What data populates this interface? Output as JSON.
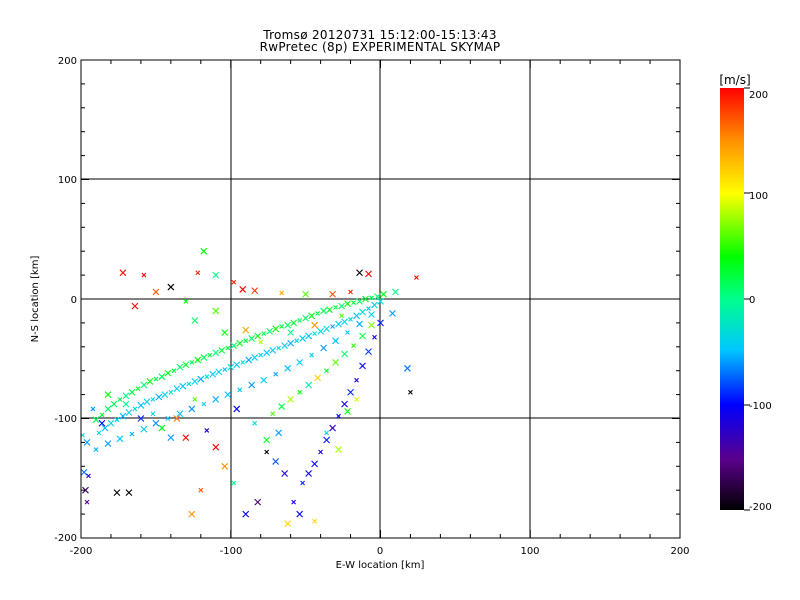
{
  "chart_data": {
    "type": "scatter",
    "title": "Tromsø 20120731 15:12:00-15:13:43",
    "subtitle": "RwPretec (8p) EXPERIMENTAL SKYMAP",
    "xlabel": "E-W location [km]",
    "ylabel": "N-S location [km]",
    "xlim": [
      -200,
      200
    ],
    "ylim": [
      -200,
      200
    ],
    "xticks": [
      "-200",
      "-100",
      "0",
      "100",
      "200"
    ],
    "yticks": [
      "200",
      "100",
      "0",
      "-100",
      "-200"
    ],
    "grid": true,
    "colorbar": {
      "label": "[m/s]",
      "ticks": [
        "200",
        "100",
        "0",
        "-100",
        "-200"
      ],
      "range": [
        -200,
        200
      ],
      "colors": [
        "#000000",
        "#5a008c",
        "#0000ff",
        "#00c8ff",
        "#00ff8c",
        "#00ff00",
        "#ffff00",
        "#ff8c00",
        "#ff0000"
      ]
    },
    "points": [
      {
        "x": -199,
        "y": -114,
        "v": -30
      },
      {
        "x": -196,
        "y": -120,
        "v": -60
      },
      {
        "x": -198,
        "y": -145,
        "v": -70
      },
      {
        "x": -195,
        "y": -148,
        "v": -120
      },
      {
        "x": -197,
        "y": -160,
        "v": -170
      },
      {
        "x": -190,
        "y": -101,
        "v": 20
      },
      {
        "x": -186,
        "y": -97,
        "v": 30
      },
      {
        "x": -182,
        "y": -92,
        "v": 10
      },
      {
        "x": -178,
        "y": -88,
        "v": 15
      },
      {
        "x": -174,
        "y": -84,
        "v": 25
      },
      {
        "x": -170,
        "y": -81,
        "v": 5
      },
      {
        "x": -166,
        "y": -78,
        "v": 20
      },
      {
        "x": -162,
        "y": -75,
        "v": 30
      },
      {
        "x": -158,
        "y": -72,
        "v": 10
      },
      {
        "x": -154,
        "y": -69,
        "v": 40
      },
      {
        "x": -150,
        "y": -67,
        "v": 20
      },
      {
        "x": -146,
        "y": -65,
        "v": 15
      },
      {
        "x": -142,
        "y": -62,
        "v": 35
      },
      {
        "x": -138,
        "y": -60,
        "v": 25
      },
      {
        "x": -134,
        "y": -57,
        "v": 10
      },
      {
        "x": -130,
        "y": -55,
        "v": 30
      },
      {
        "x": -126,
        "y": -53,
        "v": 20
      },
      {
        "x": -122,
        "y": -51,
        "v": 40
      },
      {
        "x": -118,
        "y": -49,
        "v": 15
      },
      {
        "x": -114,
        "y": -47,
        "v": 25
      },
      {
        "x": -110,
        "y": -45,
        "v": 5
      },
      {
        "x": -106,
        "y": -43,
        "v": 30
      },
      {
        "x": -102,
        "y": -41,
        "v": 20
      },
      {
        "x": -98,
        "y": -39,
        "v": 10
      },
      {
        "x": -94,
        "y": -37,
        "v": 35
      },
      {
        "x": -90,
        "y": -35,
        "v": 25
      },
      {
        "x": -86,
        "y": -33,
        "v": 15
      },
      {
        "x": -82,
        "y": -31,
        "v": 30
      },
      {
        "x": -78,
        "y": -29,
        "v": 20
      },
      {
        "x": -74,
        "y": -27,
        "v": 10
      },
      {
        "x": -70,
        "y": -25,
        "v": 40
      },
      {
        "x": -66,
        "y": -23,
        "v": 25
      },
      {
        "x": -62,
        "y": -22,
        "v": 15
      },
      {
        "x": -58,
        "y": -20,
        "v": 30
      },
      {
        "x": -54,
        "y": -18,
        "v": 20
      },
      {
        "x": -50,
        "y": -16,
        "v": 10
      },
      {
        "x": -46,
        "y": -14,
        "v": 35
      },
      {
        "x": -42,
        "y": -12,
        "v": 25
      },
      {
        "x": -38,
        "y": -10,
        "v": 15
      },
      {
        "x": -34,
        "y": -9,
        "v": 30
      },
      {
        "x": -30,
        "y": -7,
        "v": 20
      },
      {
        "x": -26,
        "y": -6,
        "v": 10
      },
      {
        "x": -22,
        "y": -4,
        "v": 40
      },
      {
        "x": -18,
        "y": -3,
        "v": 25
      },
      {
        "x": -14,
        "y": -2,
        "v": 15
      },
      {
        "x": -10,
        "y": 0,
        "v": 30
      },
      {
        "x": -6,
        "y": 1,
        "v": 20
      },
      {
        "x": -2,
        "y": 2,
        "v": 10
      },
      {
        "x": 2,
        "y": 4,
        "v": 35
      },
      {
        "x": -188,
        "y": -112,
        "v": -40
      },
      {
        "x": -184,
        "y": -108,
        "v": -50
      },
      {
        "x": -180,
        "y": -104,
        "v": -35
      },
      {
        "x": -176,
        "y": -101,
        "v": -45
      },
      {
        "x": -172,
        "y": -98,
        "v": -55
      },
      {
        "x": -168,
        "y": -95,
        "v": -40
      },
      {
        "x": -164,
        "y": -92,
        "v": -30
      },
      {
        "x": -160,
        "y": -89,
        "v": -50
      },
      {
        "x": -156,
        "y": -86,
        "v": -45
      },
      {
        "x": -152,
        "y": -84,
        "v": -35
      },
      {
        "x": -148,
        "y": -82,
        "v": -55
      },
      {
        "x": -144,
        "y": -80,
        "v": -40
      },
      {
        "x": -140,
        "y": -78,
        "v": -30
      },
      {
        "x": -136,
        "y": -75,
        "v": -45
      },
      {
        "x": -132,
        "y": -73,
        "v": -50
      },
      {
        "x": -128,
        "y": -71,
        "v": -35
      },
      {
        "x": -124,
        "y": -69,
        "v": -40
      },
      {
        "x": -120,
        "y": -67,
        "v": -55
      },
      {
        "x": -116,
        "y": -65,
        "v": -30
      },
      {
        "x": -112,
        "y": -63,
        "v": -45
      },
      {
        "x": -108,
        "y": -61,
        "v": -40
      },
      {
        "x": -104,
        "y": -59,
        "v": -50
      },
      {
        "x": -100,
        "y": -57,
        "v": -35
      },
      {
        "x": -96,
        "y": -55,
        "v": -45
      },
      {
        "x": -92,
        "y": -53,
        "v": -30
      },
      {
        "x": -88,
        "y": -51,
        "v": -55
      },
      {
        "x": -84,
        "y": -49,
        "v": -40
      },
      {
        "x": -80,
        "y": -47,
        "v": -35
      },
      {
        "x": -76,
        "y": -45,
        "v": -50
      },
      {
        "x": -72,
        "y": -43,
        "v": -45
      },
      {
        "x": -68,
        "y": -41,
        "v": -30
      },
      {
        "x": -64,
        "y": -39,
        "v": -40
      },
      {
        "x": -60,
        "y": -37,
        "v": -55
      },
      {
        "x": -56,
        "y": -35,
        "v": -35
      },
      {
        "x": -52,
        "y": -33,
        "v": -45
      },
      {
        "x": -48,
        "y": -31,
        "v": -50
      },
      {
        "x": -44,
        "y": -29,
        "v": -30
      },
      {
        "x": -40,
        "y": -27,
        "v": -40
      },
      {
        "x": -36,
        "y": -25,
        "v": -35
      },
      {
        "x": -32,
        "y": -23,
        "v": -55
      },
      {
        "x": -28,
        "y": -21,
        "v": -45
      },
      {
        "x": -24,
        "y": -19,
        "v": -40
      },
      {
        "x": -20,
        "y": -17,
        "v": -30
      },
      {
        "x": -16,
        "y": -14,
        "v": -50
      },
      {
        "x": -12,
        "y": -11,
        "v": -35
      },
      {
        "x": -8,
        "y": -8,
        "v": -45
      },
      {
        "x": -4,
        "y": -5,
        "v": -40
      },
      {
        "x": 0,
        "y": -2,
        "v": -30
      },
      {
        "x": -190,
        "y": -126,
        "v": -50
      },
      {
        "x": -182,
        "y": -121,
        "v": -60
      },
      {
        "x": -174,
        "y": -117,
        "v": -45
      },
      {
        "x": -166,
        "y": -113,
        "v": -55
      },
      {
        "x": -158,
        "y": -109,
        "v": -40
      },
      {
        "x": -150,
        "y": -104,
        "v": -65
      },
      {
        "x": -142,
        "y": -100,
        "v": -50
      },
      {
        "x": -134,
        "y": -96,
        "v": -45
      },
      {
        "x": -126,
        "y": -92,
        "v": -60
      },
      {
        "x": -118,
        "y": -88,
        "v": -40
      },
      {
        "x": -110,
        "y": -84,
        "v": -55
      },
      {
        "x": -102,
        "y": -80,
        "v": -50
      },
      {
        "x": -94,
        "y": -76,
        "v": -45
      },
      {
        "x": -86,
        "y": -72,
        "v": -60
      },
      {
        "x": -78,
        "y": -68,
        "v": -40
      },
      {
        "x": -70,
        "y": -63,
        "v": -55
      },
      {
        "x": -62,
        "y": -58,
        "v": -50
      },
      {
        "x": -54,
        "y": -53,
        "v": -45
      },
      {
        "x": -46,
        "y": -47,
        "v": -40
      },
      {
        "x": -38,
        "y": -41,
        "v": -60
      },
      {
        "x": -30,
        "y": -35,
        "v": -50
      },
      {
        "x": -22,
        "y": -28,
        "v": -45
      },
      {
        "x": -14,
        "y": -21,
        "v": -55
      },
      {
        "x": -6,
        "y": -13,
        "v": -40
      },
      {
        "x": -72,
        "y": -96,
        "v": 60
      },
      {
        "x": -66,
        "y": -90,
        "v": 20
      },
      {
        "x": -60,
        "y": -84,
        "v": 80
      },
      {
        "x": -54,
        "y": -78,
        "v": 40
      },
      {
        "x": -48,
        "y": -72,
        "v": -20
      },
      {
        "x": -42,
        "y": -66,
        "v": 120
      },
      {
        "x": -36,
        "y": -60,
        "v": 30
      },
      {
        "x": -30,
        "y": -53,
        "v": 60
      },
      {
        "x": -24,
        "y": -46,
        "v": 10
      },
      {
        "x": -18,
        "y": -39,
        "v": 50
      },
      {
        "x": -12,
        "y": -31,
        "v": 20
      },
      {
        "x": -6,
        "y": -22,
        "v": 70
      },
      {
        "x": -52,
        "y": -154,
        "v": -90
      },
      {
        "x": -48,
        "y": -146,
        "v": -110
      },
      {
        "x": -44,
        "y": -138,
        "v": -100
      },
      {
        "x": -40,
        "y": -128,
        "v": -120
      },
      {
        "x": -36,
        "y": -118,
        "v": -95
      },
      {
        "x": -32,
        "y": -108,
        "v": -130
      },
      {
        "x": -28,
        "y": -98,
        "v": -105
      },
      {
        "x": -24,
        "y": -88,
        "v": -115
      },
      {
        "x": -20,
        "y": -78,
        "v": -90
      },
      {
        "x": -16,
        "y": -68,
        "v": -120
      },
      {
        "x": -12,
        "y": -56,
        "v": -100
      },
      {
        "x": -8,
        "y": -44,
        "v": -85
      },
      {
        "x": -4,
        "y": -32,
        "v": -110
      },
      {
        "x": 0,
        "y": -20,
        "v": -95
      },
      {
        "x": -172,
        "y": 22,
        "v": 200
      },
      {
        "x": -158,
        "y": 20,
        "v": 200
      },
      {
        "x": -150,
        "y": 6,
        "v": 170
      },
      {
        "x": -140,
        "y": 10,
        "v": -200
      },
      {
        "x": -122,
        "y": 22,
        "v": 190
      },
      {
        "x": -118,
        "y": 40,
        "v": 40
      },
      {
        "x": -110,
        "y": 20,
        "v": 0
      },
      {
        "x": -98,
        "y": 14,
        "v": 190
      },
      {
        "x": -92,
        "y": 8,
        "v": 200
      },
      {
        "x": -84,
        "y": 7,
        "v": 180
      },
      {
        "x": -66,
        "y": 5,
        "v": 140
      },
      {
        "x": -50,
        "y": 4,
        "v": 60
      },
      {
        "x": -32,
        "y": 4,
        "v": 170
      },
      {
        "x": -20,
        "y": 6,
        "v": 190
      },
      {
        "x": -14,
        "y": 22,
        "v": -200
      },
      {
        "x": -8,
        "y": 21,
        "v": 200
      },
      {
        "x": 24,
        "y": 18,
        "v": 200
      },
      {
        "x": 10,
        "y": 6,
        "v": 0
      },
      {
        "x": -164,
        "y": -6,
        "v": 200
      },
      {
        "x": -130,
        "y": -2,
        "v": 40
      },
      {
        "x": -124,
        "y": -18,
        "v": 10
      },
      {
        "x": -110,
        "y": -10,
        "v": 60
      },
      {
        "x": -116,
        "y": -110,
        "v": -120
      },
      {
        "x": -110,
        "y": -124,
        "v": 200
      },
      {
        "x": -104,
        "y": -140,
        "v": 150
      },
      {
        "x": -98,
        "y": -154,
        "v": 0
      },
      {
        "x": -90,
        "y": -180,
        "v": -100
      },
      {
        "x": -82,
        "y": -170,
        "v": -160
      },
      {
        "x": -76,
        "y": -128,
        "v": -200
      },
      {
        "x": -70,
        "y": -136,
        "v": -80
      },
      {
        "x": -64,
        "y": -146,
        "v": -120
      },
      {
        "x": -58,
        "y": -170,
        "v": -110
      },
      {
        "x": -54,
        "y": -180,
        "v": -100
      },
      {
        "x": -62,
        "y": -188,
        "v": 120
      },
      {
        "x": -44,
        "y": -186,
        "v": 120
      },
      {
        "x": -130,
        "y": -116,
        "v": 200
      },
      {
        "x": -136,
        "y": -100,
        "v": 160
      },
      {
        "x": -124,
        "y": -84,
        "v": 60
      },
      {
        "x": -176,
        "y": -162,
        "v": -200
      },
      {
        "x": -168,
        "y": -162,
        "v": -200
      },
      {
        "x": -196,
        "y": -170,
        "v": -150
      },
      {
        "x": -186,
        "y": -104,
        "v": -100
      },
      {
        "x": -160,
        "y": -100,
        "v": -90
      },
      {
        "x": -120,
        "y": -160,
        "v": 170
      },
      {
        "x": -126,
        "y": -180,
        "v": 150
      },
      {
        "x": 18,
        "y": -58,
        "v": -70
      },
      {
        "x": 20,
        "y": -78,
        "v": -200
      },
      {
        "x": 8,
        "y": -12,
        "v": -60
      },
      {
        "x": -96,
        "y": -92,
        "v": -100
      },
      {
        "x": -84,
        "y": -104,
        "v": -30
      },
      {
        "x": -76,
        "y": -118,
        "v": 30
      },
      {
        "x": -68,
        "y": -112,
        "v": -60
      },
      {
        "x": -36,
        "y": -112,
        "v": -30
      },
      {
        "x": -28,
        "y": -126,
        "v": 80
      },
      {
        "x": -22,
        "y": -94,
        "v": 40
      },
      {
        "x": -16,
        "y": -84,
        "v": 90
      },
      {
        "x": -140,
        "y": -116,
        "v": -60
      },
      {
        "x": -146,
        "y": -108,
        "v": 30
      },
      {
        "x": -152,
        "y": -96,
        "v": -40
      },
      {
        "x": -170,
        "y": -88,
        "v": 0
      },
      {
        "x": -182,
        "y": -80,
        "v": 40
      },
      {
        "x": -192,
        "y": -92,
        "v": -60
      },
      {
        "x": -104,
        "y": -28,
        "v": 40
      },
      {
        "x": -90,
        "y": -26,
        "v": 140
      },
      {
        "x": -80,
        "y": -36,
        "v": 80
      },
      {
        "x": -60,
        "y": -28,
        "v": 0
      },
      {
        "x": -44,
        "y": -22,
        "v": 150
      },
      {
        "x": -26,
        "y": -14,
        "v": 60
      }
    ]
  }
}
